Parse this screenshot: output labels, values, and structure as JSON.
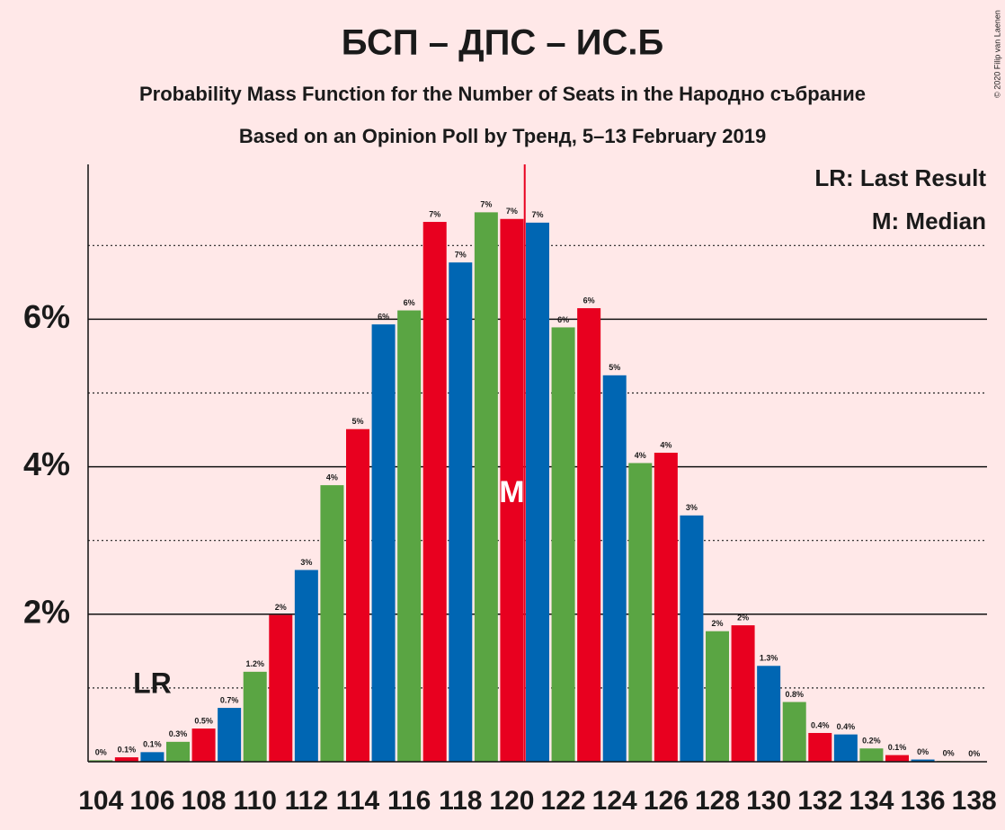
{
  "chart_data": {
    "type": "bar",
    "title": "БСП – ДПС – ИС.Б",
    "subtitle": "Probability Mass Function for the Number of Seats in the Народно събрание",
    "subtitle2": "Based on an Opinion Poll by Тренд, 5–13 February 2019",
    "copyright": "© 2020 Filip van Laenen",
    "categories": [
      104,
      null,
      106,
      null,
      108,
      null,
      110,
      null,
      112,
      null,
      114,
      null,
      116,
      null,
      118,
      null,
      120,
      null,
      122,
      null,
      124,
      null,
      126,
      null,
      128,
      null,
      130,
      null,
      132,
      null,
      134,
      null,
      136,
      null,
      138
    ],
    "values": [
      0.02,
      0.06,
      0.13,
      0.27,
      0.45,
      0.73,
      1.22,
      1.99,
      2.6,
      3.75,
      4.51,
      5.93,
      6.12,
      7.32,
      6.77,
      7.45,
      7.36,
      7.31,
      5.89,
      6.15,
      5.24,
      4.05,
      4.19,
      3.34,
      1.77,
      1.85,
      1.3,
      0.81,
      0.39,
      0.37,
      0.18,
      0.09,
      0.03,
      0.01,
      0.005
    ],
    "value_labels": [
      "0%",
      "0.1%",
      "0.1%",
      "0.3%",
      "0.5%",
      "0.7%",
      "1.2%",
      "2%",
      "3%",
      "4%",
      "5%",
      "6%",
      "6%",
      "7%",
      "7%",
      "7%",
      "7%",
      "7%",
      "6%",
      "6%",
      "5%",
      "4%",
      "4%",
      "3%",
      "2%",
      "2%",
      "1.3%",
      "0.8%",
      "0.4%",
      "0.4%",
      "0.2%",
      "0.1%",
      "0%",
      "0%",
      "0%"
    ],
    "palette": [
      "#5aa543",
      "#e8001f",
      "#0066b3"
    ],
    "ylim": [
      0,
      8.1
    ],
    "yticks": [
      {
        "value": 2,
        "label": "2%"
      },
      {
        "value": 4,
        "label": "4%"
      },
      {
        "value": 6,
        "label": "6%"
      }
    ],
    "minor_yticks": [
      1,
      3,
      5,
      7
    ],
    "last_result_index": 2,
    "last_result_label": "LR",
    "median_index": 16,
    "median_label": "M",
    "legend": [
      "LR: Last Result",
      "M: Median"
    ]
  }
}
